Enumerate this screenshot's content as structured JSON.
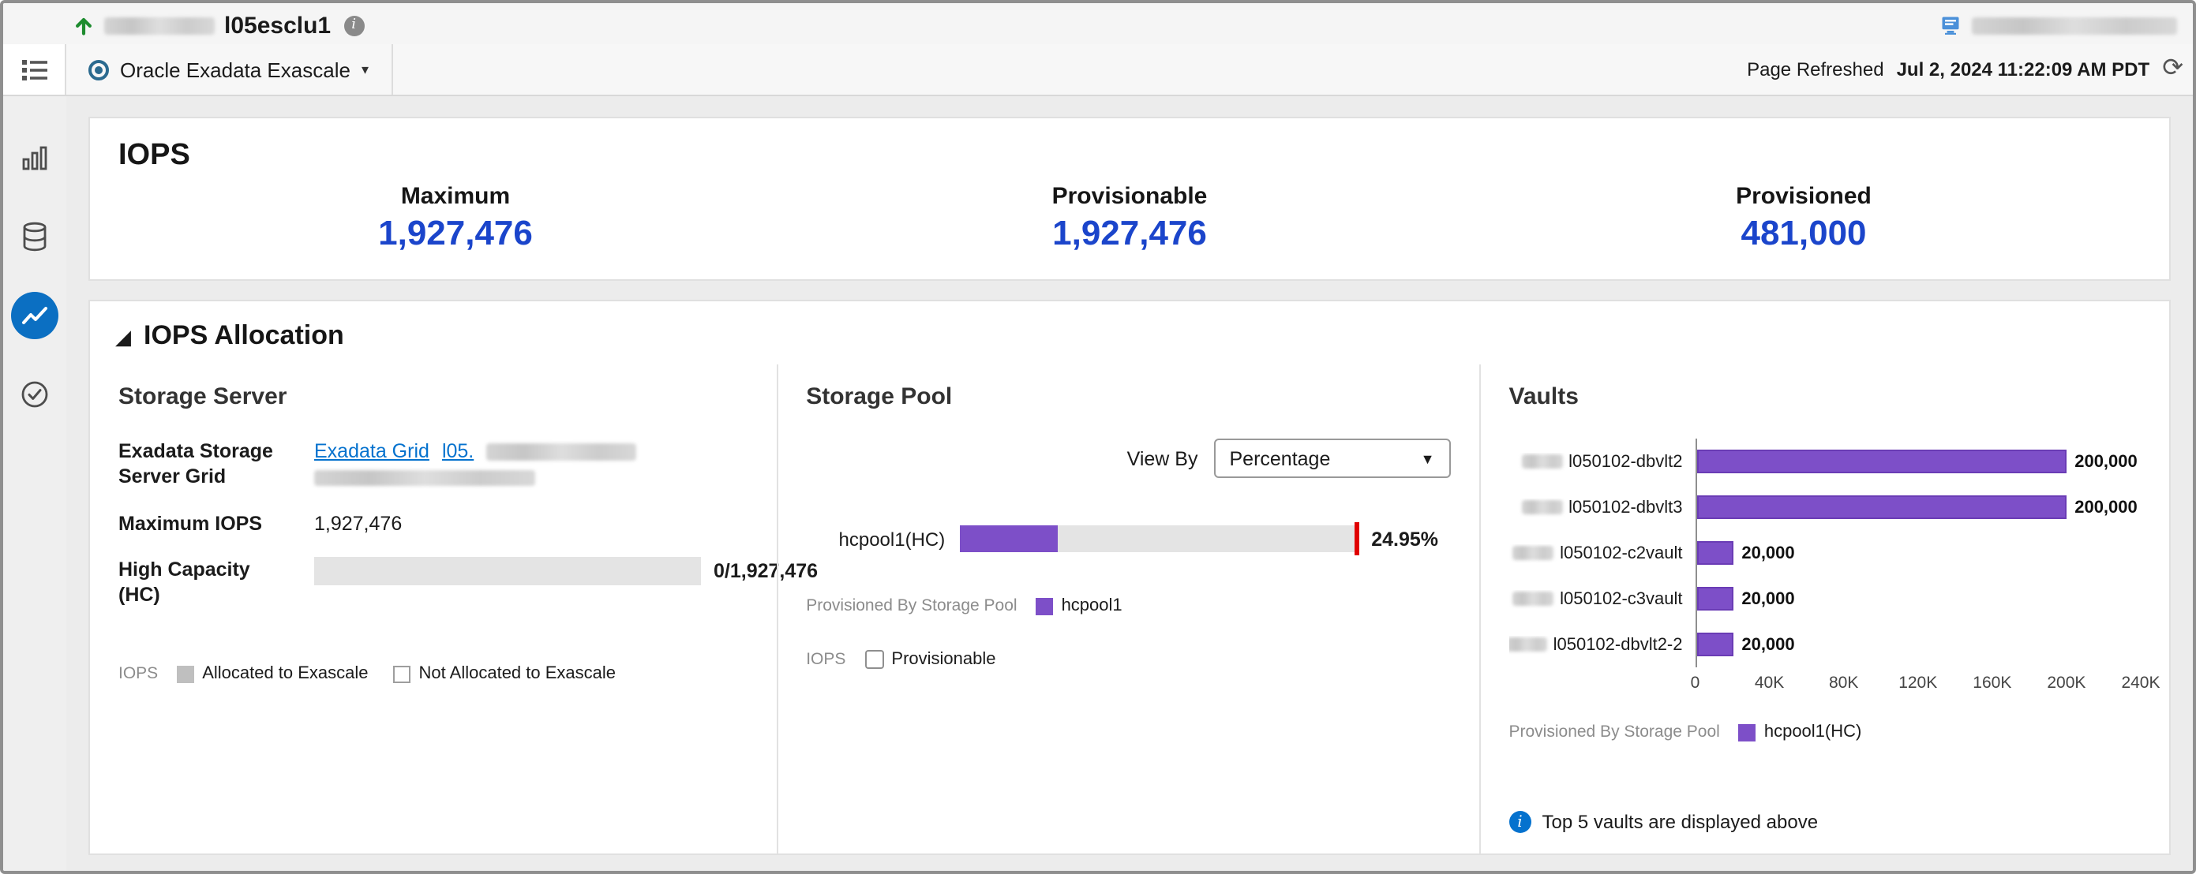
{
  "colors": {
    "metric_blue": "#1b45cb",
    "link_blue": "#0572ce",
    "bar_purple": "#7d4fc8",
    "threshold_red": "#e00000",
    "selected_nav_blue": "#0b6fc2",
    "arrow_green": "#1e8c2f"
  },
  "header": {
    "target_name": "l05esclu1",
    "context_menu": "Oracle Exadata Exascale",
    "page_refreshed_label": "Page Refreshed",
    "page_refreshed_value": "Jul 2, 2024 11:22:09 AM PDT"
  },
  "sidebar": {
    "items": [
      {
        "icon": "bar-chart-icon",
        "selected": false
      },
      {
        "icon": "database-icon",
        "selected": false
      },
      {
        "icon": "line-chart-icon",
        "selected": true
      },
      {
        "icon": "check-circle-icon",
        "selected": false
      }
    ]
  },
  "iops": {
    "title": "IOPS",
    "metrics": [
      {
        "label": "Maximum",
        "value": "1,927,476"
      },
      {
        "label": "Provisionable",
        "value": "1,927,476"
      },
      {
        "label": "Provisioned",
        "value": "481,000"
      }
    ]
  },
  "allocation": {
    "title": "IOPS Allocation",
    "storage_server": {
      "title": "Storage Server",
      "grid_label": "Exadata Storage Server Grid",
      "grid_link_1": "Exadata Grid",
      "grid_link_2": "l05.",
      "max_iops_label": "Maximum IOPS",
      "max_iops_value": "1,927,476",
      "hc_label": "High Capacity (HC)",
      "hc_value": "0/1,927,476",
      "legend_title": "IOPS",
      "legend_allocated": "Allocated to Exascale",
      "legend_not_allocated": "Not Allocated to Exascale"
    },
    "storage_pool": {
      "title": "Storage Pool",
      "view_by_label": "View By",
      "view_by_value": "Percentage",
      "legend_title": "Provisioned By Storage Pool",
      "legend_item": "hcpool1",
      "iops_label": "IOPS",
      "checkbox_label": "Provisionable",
      "checkbox_checked": false
    },
    "vaults": {
      "title": "Vaults",
      "legend_title": "Provisioned By Storage Pool",
      "legend_item": "hcpool1(HC)",
      "note": "Top 5 vaults are displayed above"
    }
  },
  "chart_data": [
    {
      "id": "storage-pool-allocation",
      "type": "bar",
      "orientation": "horizontal",
      "title": "Storage Pool",
      "categories": [
        "hcpool1(HC)"
      ],
      "values": [
        24.95
      ],
      "value_labels": [
        "24.95%"
      ],
      "unit": "percent",
      "xlim": [
        0,
        100
      ],
      "threshold": 100,
      "legend": [
        "hcpool1"
      ],
      "legend_position": "bottom"
    },
    {
      "id": "vaults",
      "type": "bar",
      "orientation": "horizontal",
      "title": "Vaults",
      "categories": [
        "l050102-dbvlt2",
        "l050102-dbvlt3",
        "l050102-c2vault",
        "l050102-c3vault",
        "l050102-dbvlt2-2"
      ],
      "values": [
        200000,
        200000,
        20000,
        20000,
        20000
      ],
      "value_labels": [
        "200,000",
        "200,000",
        "20,000",
        "20,000",
        "20,000"
      ],
      "xlim": [
        0,
        240000
      ],
      "x_ticks": [
        "0",
        "40K",
        "80K",
        "120K",
        "160K",
        "200K",
        "240K"
      ],
      "grid": false,
      "legend": [
        "hcpool1(HC)"
      ],
      "legend_position": "bottom"
    },
    {
      "id": "high-capacity-allocation",
      "type": "bar",
      "orientation": "horizontal",
      "title": "High Capacity (HC)",
      "categories": [
        "High Capacity (HC)"
      ],
      "values": [
        0
      ],
      "value_labels": [
        "0/1,927,476"
      ],
      "xlim": [
        0,
        1927476
      ]
    }
  ]
}
